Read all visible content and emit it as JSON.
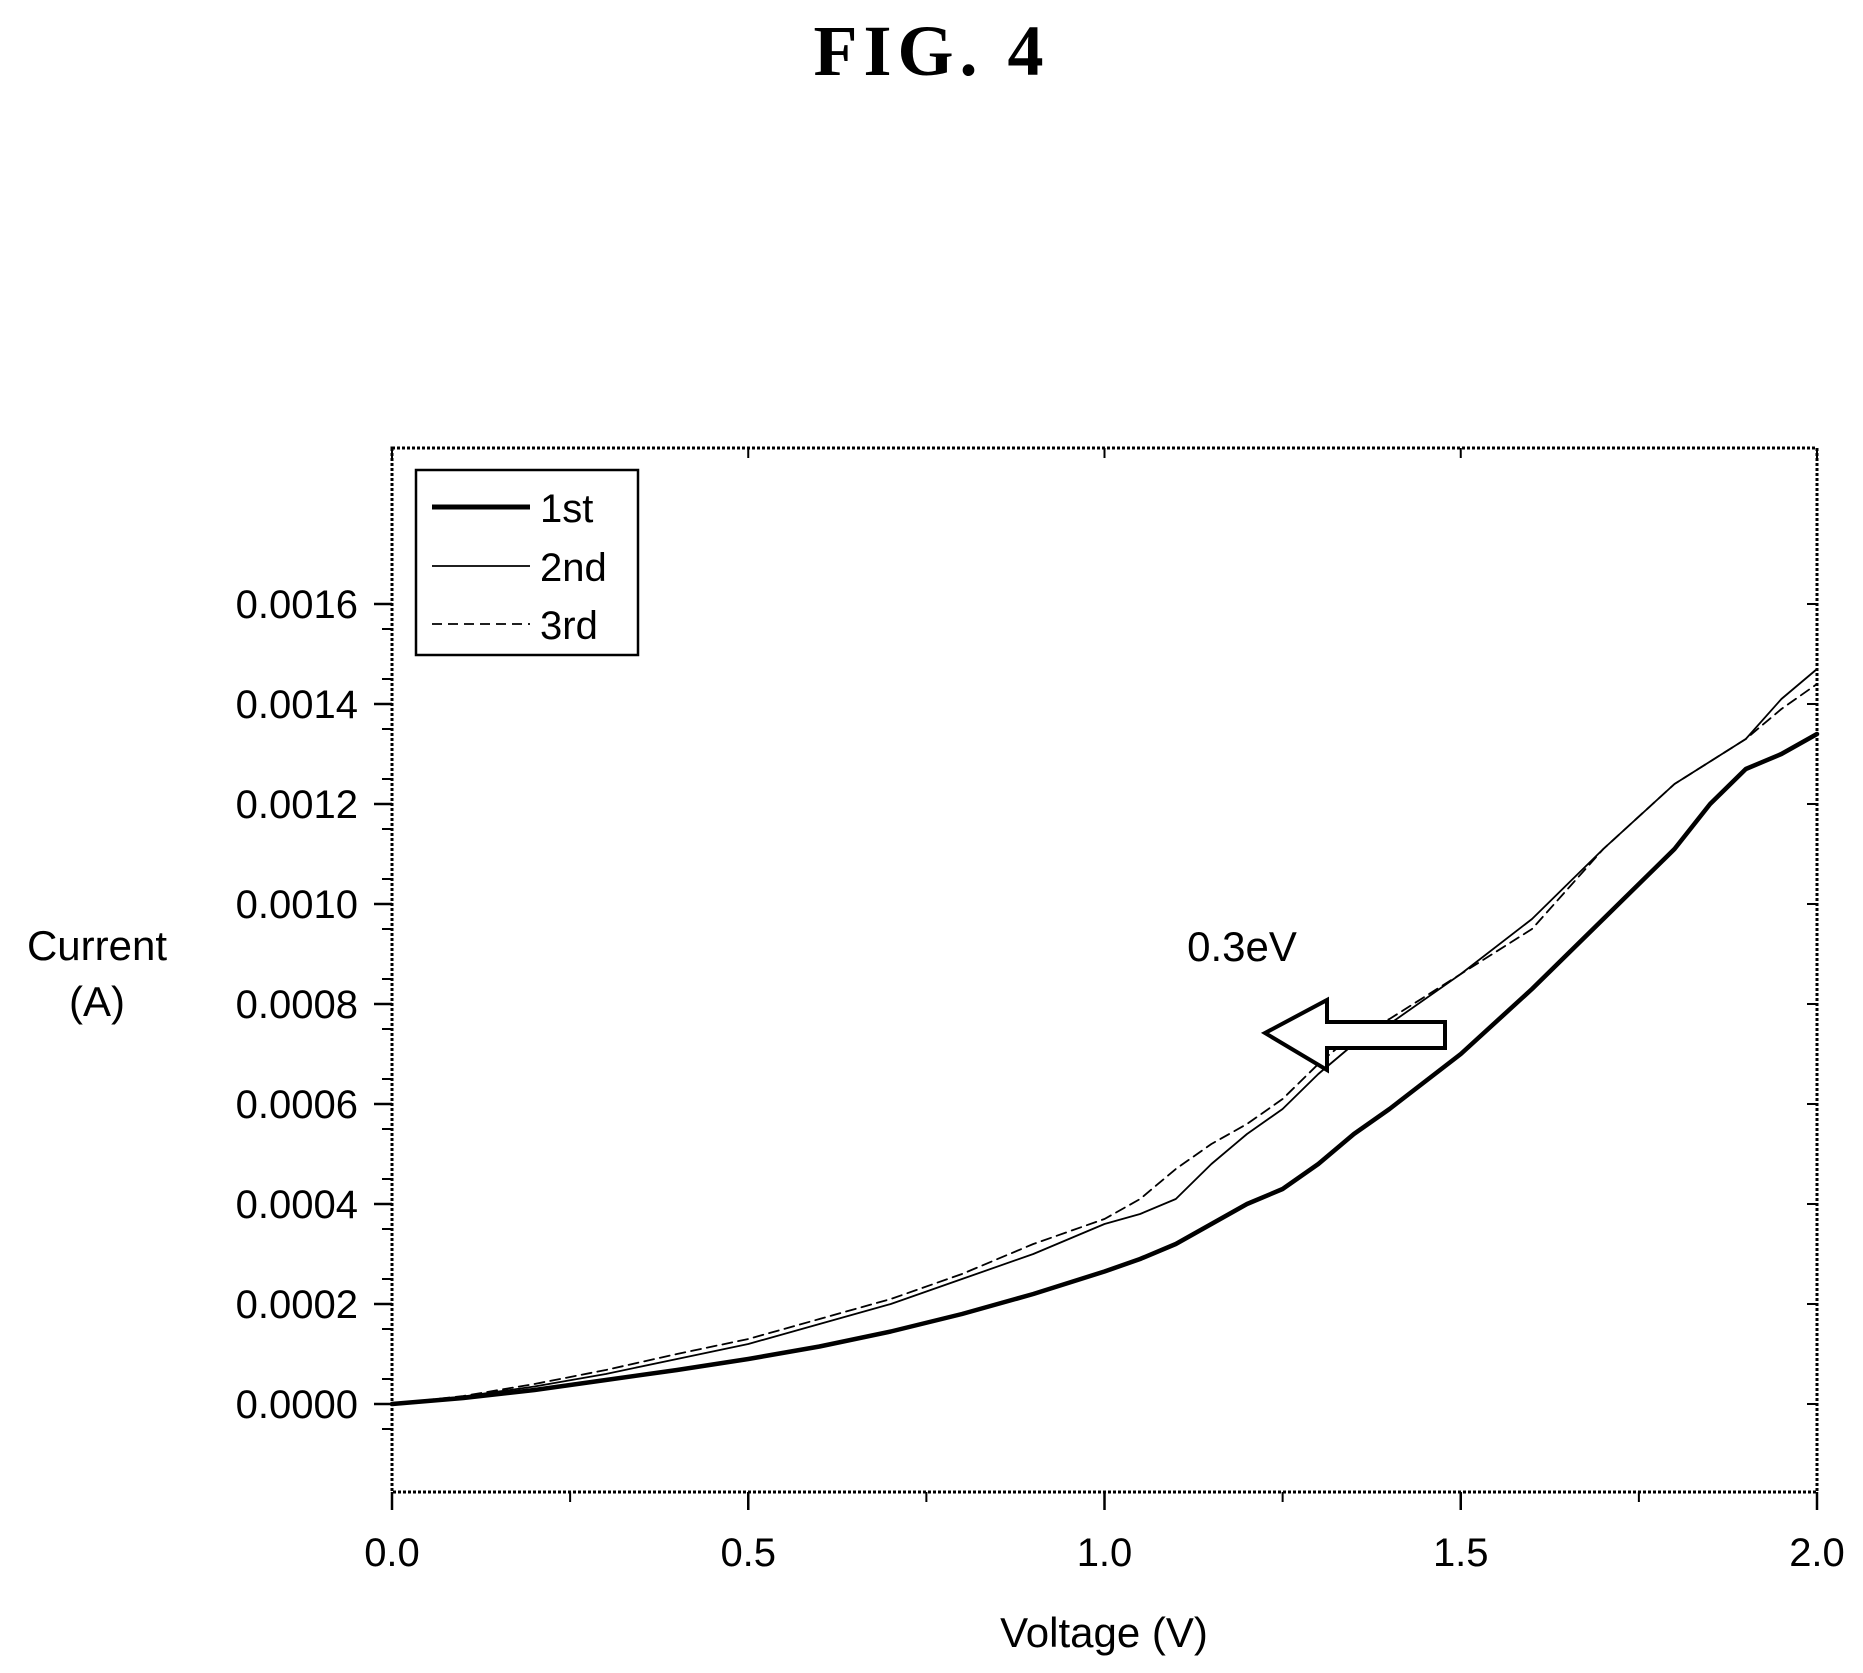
{
  "figure_label": "FIG.  4",
  "chart_data": {
    "type": "line",
    "xlabel": "Voltage (V)",
    "ylabel": [
      "Current",
      "(A)"
    ],
    "xlim": [
      0.0,
      2.0
    ],
    "ylim": [
      -0.00015,
      0.0016
    ],
    "xticks": [
      0.0,
      0.5,
      1.0,
      1.5,
      2.0
    ],
    "xtick_labels": [
      "0.0",
      "0.5",
      "1.0",
      "1.5",
      "2.0"
    ],
    "yticks": [
      0.0,
      0.0002,
      0.0004,
      0.0006,
      0.0008,
      0.001,
      0.0012,
      0.0014,
      0.0016
    ],
    "ytick_labels": [
      "0.0000",
      "0.0002",
      "0.0004",
      "0.0006",
      "0.0008",
      "0.0010",
      "0.0012",
      "0.0014",
      "0.0016"
    ],
    "grid": false,
    "legend_position": "top-left",
    "annotation": {
      "text": "0.3eV",
      "arrow_direction": "left"
    },
    "series": [
      {
        "name": "1st",
        "style": "solid-thick",
        "x": [
          0.0,
          0.1,
          0.2,
          0.3,
          0.4,
          0.5,
          0.6,
          0.7,
          0.8,
          0.9,
          1.0,
          1.05,
          1.1,
          1.15,
          1.2,
          1.25,
          1.3,
          1.35,
          1.4,
          1.5,
          1.6,
          1.7,
          1.8,
          1.85,
          1.9,
          1.95,
          2.0
        ],
        "y": [
          0.0,
          1.2e-05,
          2.8e-05,
          4.8e-05,
          6.8e-05,
          9e-05,
          0.000115,
          0.000145,
          0.00018,
          0.00022,
          0.000265,
          0.00029,
          0.00032,
          0.00036,
          0.0004,
          0.00043,
          0.00048,
          0.00054,
          0.00059,
          0.0007,
          0.00083,
          0.00097,
          0.00111,
          0.0012,
          0.00127,
          0.0013,
          0.00134
        ]
      },
      {
        "name": "2nd",
        "style": "solid-thin",
        "x": [
          0.0,
          0.1,
          0.2,
          0.3,
          0.4,
          0.5,
          0.6,
          0.7,
          0.8,
          0.9,
          1.0,
          1.05,
          1.1,
          1.15,
          1.2,
          1.25,
          1.3,
          1.35,
          1.4,
          1.5,
          1.6,
          1.7,
          1.8,
          1.9,
          1.95,
          2.0
        ],
        "y": [
          0.0,
          1.5e-05,
          3.5e-05,
          6e-05,
          9e-05,
          0.00012,
          0.00016,
          0.0002,
          0.00025,
          0.0003,
          0.00036,
          0.00038,
          0.00041,
          0.00048,
          0.00054,
          0.00059,
          0.00066,
          0.00072,
          0.00076,
          0.00086,
          0.00097,
          0.00111,
          0.00124,
          0.00133,
          0.00141,
          0.00147
        ]
      },
      {
        "name": "3rd",
        "style": "dashed",
        "x": [
          0.0,
          0.1,
          0.2,
          0.3,
          0.4,
          0.5,
          0.6,
          0.7,
          0.8,
          0.9,
          1.0,
          1.05,
          1.1,
          1.15,
          1.2,
          1.25,
          1.3,
          1.35,
          1.4,
          1.5,
          1.6,
          1.7,
          1.8,
          1.9,
          1.95,
          2.0
        ],
        "y": [
          0.0,
          1.6e-05,
          4e-05,
          6.8e-05,
          0.0001,
          0.00013,
          0.00017,
          0.00021,
          0.00026,
          0.00032,
          0.00037,
          0.00041,
          0.00047,
          0.00052,
          0.00056,
          0.00061,
          0.00068,
          0.00074,
          0.00077,
          0.00086,
          0.00095,
          0.00111,
          0.00124,
          0.00133,
          0.00139,
          0.00144
        ]
      }
    ]
  }
}
